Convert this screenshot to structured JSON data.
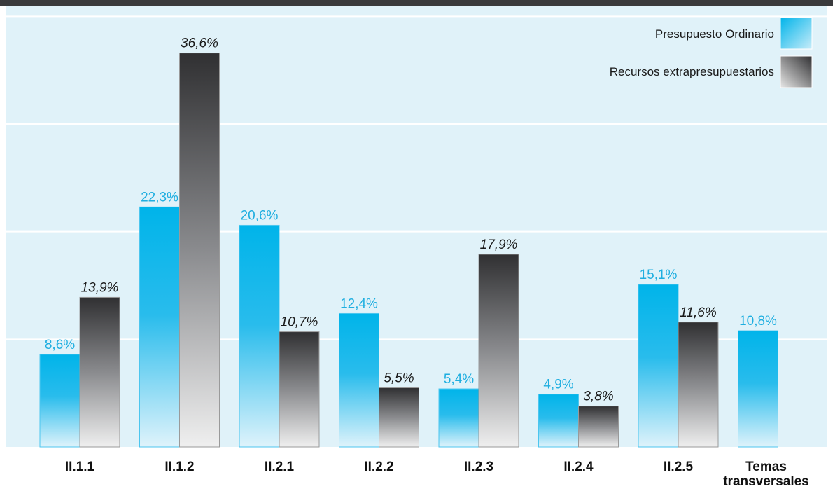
{
  "chart_data": {
    "type": "bar",
    "categories": [
      "II.1.1",
      "II.1.2",
      "II.2.1",
      "II.2.2",
      "II.2.3",
      "II.2.4",
      "II.2.5",
      "Temas transversales"
    ],
    "series": [
      {
        "name": "Presupuesto Ordinario",
        "values": [
          8.6,
          22.3,
          20.6,
          12.4,
          5.4,
          4.9,
          15.1,
          10.8
        ],
        "labels": [
          "8,6%",
          "22,3%",
          "20,6%",
          "12,4%",
          "5,4%",
          "4,9%",
          "15,1%",
          "10,8%"
        ],
        "color": "#00b4ea"
      },
      {
        "name": "Recursos extrapresupuestarios",
        "values": [
          13.9,
          36.6,
          10.7,
          5.5,
          17.9,
          3.8,
          11.6,
          null
        ],
        "labels": [
          "13,9%",
          "36,6%",
          "10,7%",
          "5,5%",
          "17,9%",
          "3,8%",
          "11,6%",
          null
        ],
        "color": "#3a3a3c"
      }
    ],
    "ylim": [
      0,
      41
    ],
    "grid": true,
    "legend_position": "top-right",
    "background": "#e0f2f9"
  }
}
